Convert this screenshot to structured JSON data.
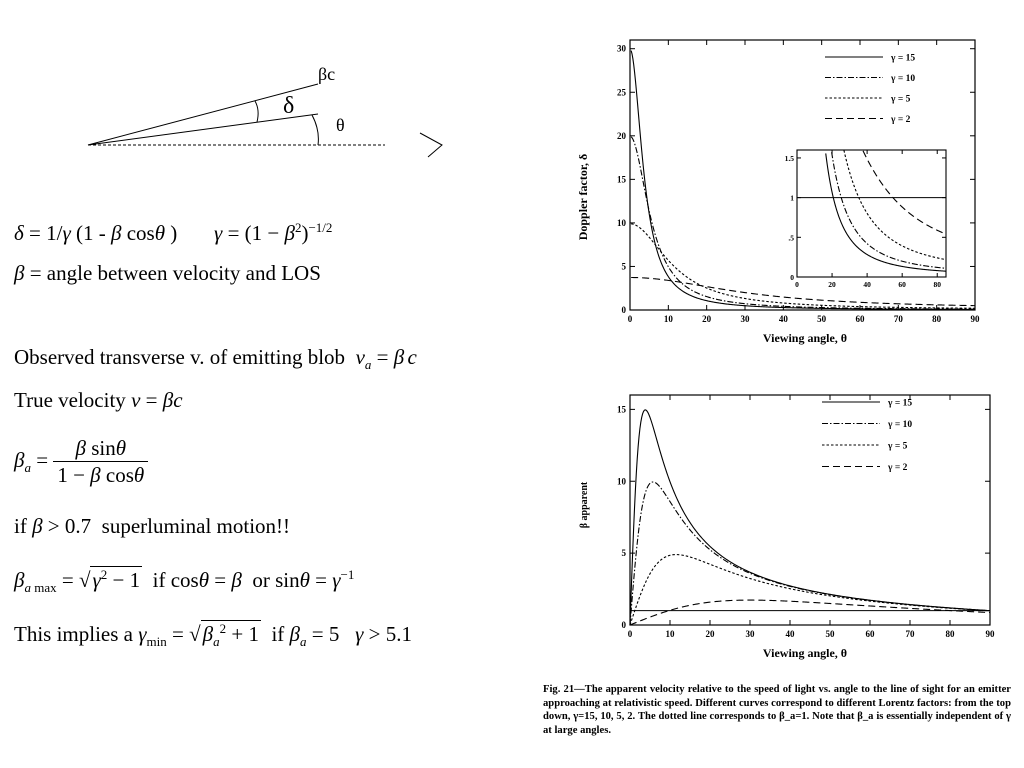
{
  "diagram": {
    "label_beta_c": "βc",
    "label_delta": "δ",
    "label_theta": "θ"
  },
  "text": {
    "line2": "= angle between velocity and LOS",
    "line3": "Observed transverse v. of emitting blob",
    "line4": "True velocity",
    "line6": "if",
    "line6b": "superluminal motion!!",
    "line7_if": "if",
    "line7_or": "or",
    "line8": "This implies a",
    "line8_if": "if"
  },
  "caption": {
    "fig_label": "Fig. 21",
    "text": "—The apparent velocity relative to the speed of light vs. angle to the line of sight for an emitter approaching at relativistic speed. Different curves correspond to different Lorentz factors: from the top down, γ=15, 10, 5, 2. The dotted line corresponds to β_a=1. Note that β_a is essentially independent of γ at large angles."
  },
  "chart_data": [
    {
      "type": "line",
      "xlabel": "Viewing angle, θ",
      "ylabel": "Doppler factor, δ",
      "xlim": [
        0,
        90
      ],
      "ylim": [
        0,
        31
      ],
      "x_ticks": [
        0,
        10,
        20,
        30,
        40,
        50,
        60,
        70,
        80,
        90
      ],
      "y_ticks": [
        0,
        5,
        10,
        15,
        20,
        25,
        30
      ],
      "legend_position": "top-right",
      "series": [
        {
          "name": "γ = 15",
          "gamma": 15,
          "style": "solid"
        },
        {
          "name": "γ = 10",
          "gamma": 10,
          "style": "dashdot"
        },
        {
          "name": "γ = 5",
          "gamma": 5,
          "style": "dotted"
        },
        {
          "name": "γ = 2",
          "gamma": 2,
          "style": "dashed"
        }
      ],
      "inset": {
        "xlim": [
          0,
          85
        ],
        "ylim": [
          0,
          1.6
        ],
        "x_ticks": [
          0,
          20,
          40,
          60,
          80
        ],
        "y_ticks": [
          0,
          0.5,
          1,
          1.5
        ],
        "y_tick_labels": [
          "0",
          ".5",
          "1",
          "1.5"
        ],
        "reference_line": 1
      }
    },
    {
      "type": "line",
      "xlabel": "Viewing angle, θ",
      "ylabel": "β apparent",
      "xlim": [
        0,
        90
      ],
      "ylim": [
        0,
        16
      ],
      "x_ticks": [
        0,
        10,
        20,
        30,
        40,
        50,
        60,
        70,
        80,
        90
      ],
      "y_ticks": [
        0,
        5,
        10,
        15
      ],
      "legend_position": "top-right",
      "reference_line": 1,
      "series": [
        {
          "name": "γ = 15",
          "gamma": 15,
          "style": "solid"
        },
        {
          "name": "γ = 10",
          "gamma": 10,
          "style": "dashdot"
        },
        {
          "name": "γ = 5",
          "gamma": 5,
          "style": "dotted"
        },
        {
          "name": "γ = 2",
          "gamma": 2,
          "style": "dashed"
        }
      ]
    }
  ]
}
